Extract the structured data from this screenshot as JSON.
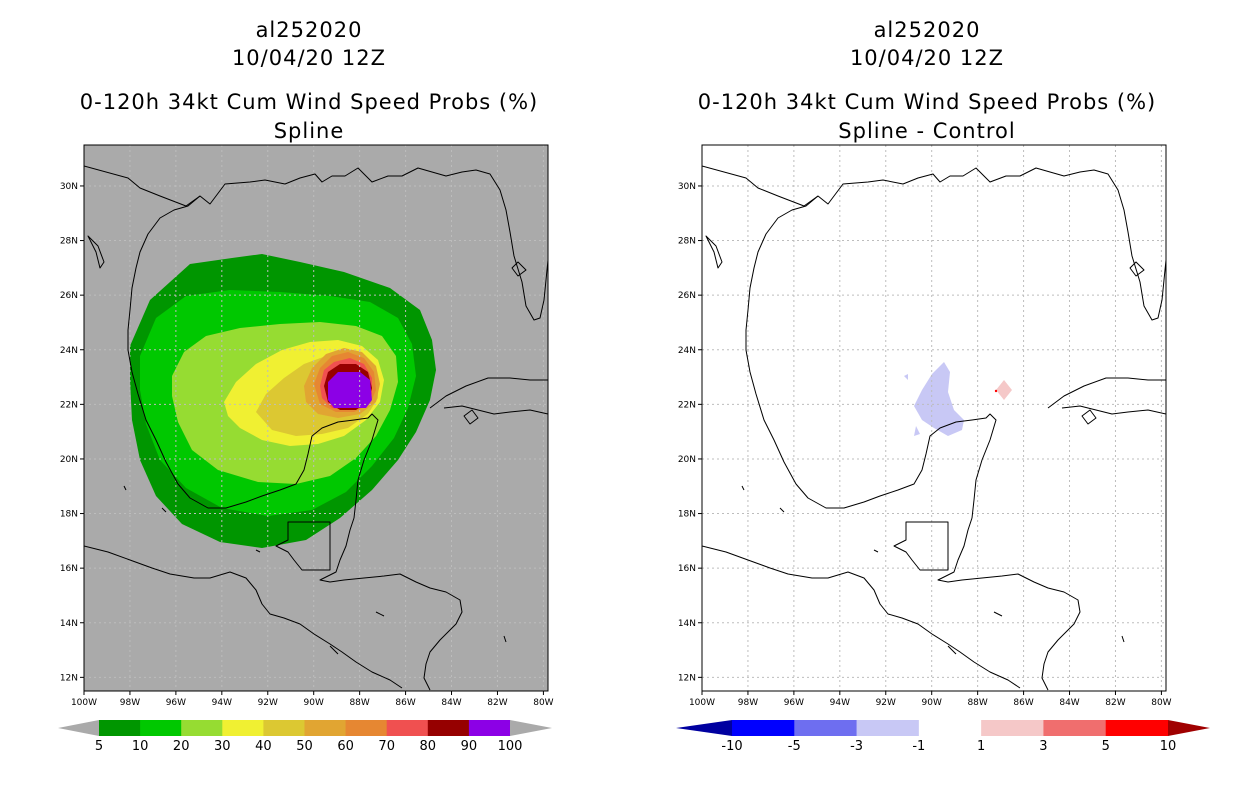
{
  "panels": [
    {
      "id": "left",
      "storm_id": "al252020",
      "datetime": "10/04/20 12Z",
      "product": "0-120h 34kt Cum Wind Speed Probs (%)",
      "subtitle": "Spline",
      "colorbar": {
        "labels": [
          "5",
          "10",
          "20",
          "30",
          "40",
          "50",
          "60",
          "70",
          "80",
          "90",
          "100"
        ],
        "colors": [
          "#009600",
          "#00c800",
          "#96dc32",
          "#f0f032",
          "#dcc832",
          "#e1a532",
          "#e68732",
          "#f05050",
          "#960000",
          "#8c00e6"
        ],
        "end_color": "#aaaaaa"
      }
    },
    {
      "id": "right",
      "storm_id": "al252020",
      "datetime": "10/04/20 12Z",
      "product": "0-120h 34kt Cum Wind Speed Probs (%)",
      "subtitle": "Spline - Control",
      "colorbar": {
        "labels": [
          "-10",
          "-5",
          "-3",
          "-1",
          "1",
          "3",
          "5",
          "10"
        ],
        "colors": [
          "#0000a0",
          "#0000ff",
          "#6e6ef0",
          "#c8c8f5",
          "#ffffff",
          "#f5c8c8",
          "#f06e6e",
          "#ff0000",
          "#a00000"
        ]
      }
    }
  ],
  "map": {
    "lat_labels": [
      "30N",
      "28N",
      "26N",
      "24N",
      "22N",
      "20N",
      "18N",
      "16N",
      "14N",
      "12N"
    ],
    "lon_labels": [
      "100W",
      "98W",
      "96W",
      "94W",
      "92W",
      "90W",
      "88W",
      "86W",
      "84W",
      "82W",
      "80W"
    ],
    "land_sea_fill_left": "#aaaaaa"
  }
}
